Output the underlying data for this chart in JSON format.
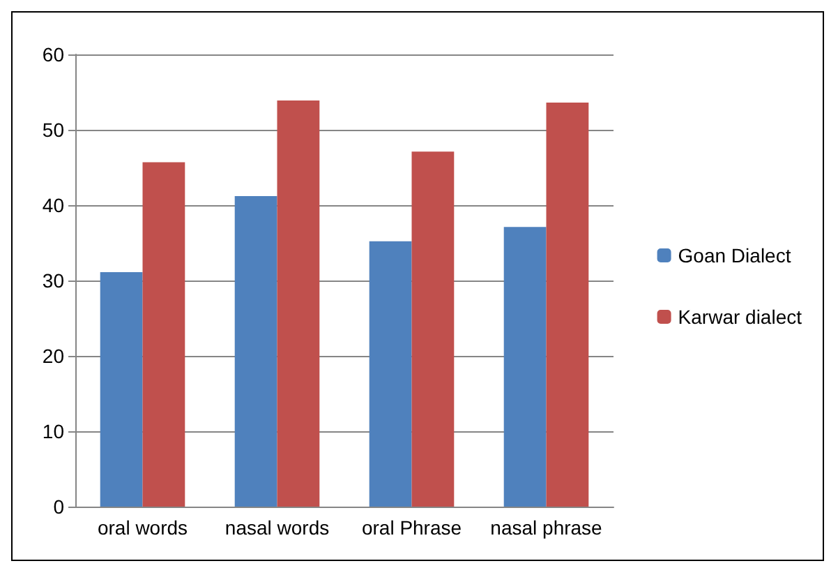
{
  "chart_data": {
    "type": "bar",
    "categories": [
      "oral words",
      "nasal words",
      "oral Phrase",
      "nasal phrase"
    ],
    "series": [
      {
        "name": "Goan Dialect",
        "color": "#4f81bd",
        "values": [
          31.1,
          41.2,
          35.2,
          37.1
        ]
      },
      {
        "name": "Karwar dialect",
        "color": "#c0504d",
        "values": [
          45.7,
          53.9,
          47.1,
          53.6
        ]
      }
    ],
    "ylim": [
      0,
      60
    ],
    "yticks": [
      0,
      10,
      20,
      30,
      40,
      50,
      60
    ],
    "grid": "y",
    "legend": "right"
  }
}
